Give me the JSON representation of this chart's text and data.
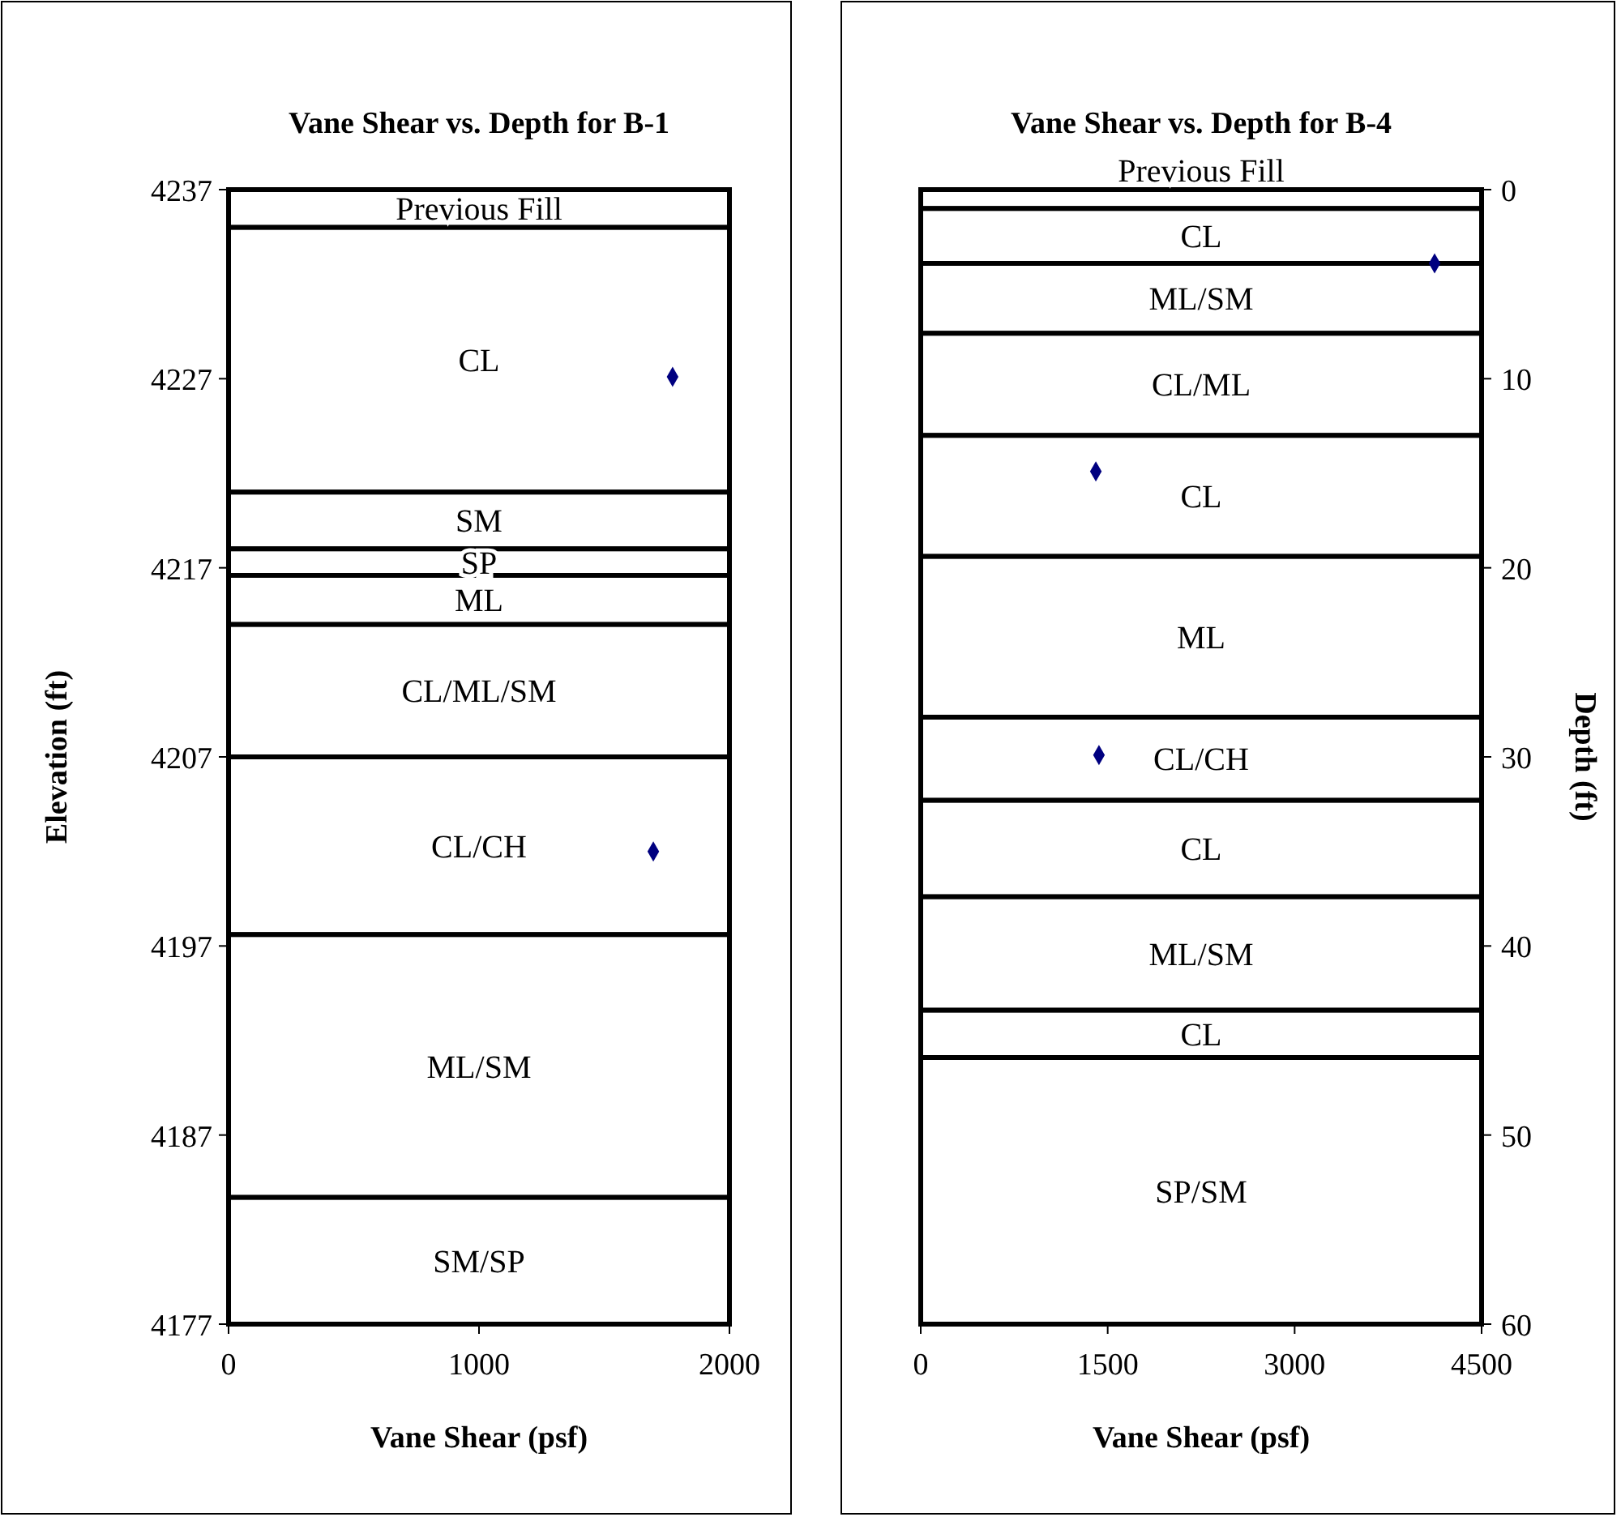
{
  "chart_data": [
    {
      "type": "scatter",
      "title": "Vane Shear vs. Depth for B-1",
      "xlabel": "Vane Shear (psf)",
      "ylabel": "Elevation (ft)",
      "xlim": [
        0,
        2000
      ],
      "xticks": [
        0,
        1000,
        2000
      ],
      "ylim": [
        4177,
        4237
      ],
      "yticks": [
        4177,
        4187,
        4197,
        4207,
        4217,
        4227,
        4237
      ],
      "marker": "diamond",
      "grid": false,
      "series": [
        {
          "color": "#000080",
          "x": [
            1773,
            1696
          ],
          "values": [
            4227.1,
            4202
          ]
        }
      ],
      "bands": [
        {
          "axis": "y",
          "from": 4235,
          "to": 4237,
          "label": "Previous Fill",
          "color": "#ffffff"
        },
        {
          "axis": "y",
          "from": 4221,
          "to": 4235,
          "label": "CL",
          "color": "#ffffff"
        },
        {
          "axis": "y",
          "from": 4218,
          "to": 4221,
          "label": "SM",
          "color": "#ffffff"
        },
        {
          "axis": "y",
          "from": 4216.6,
          "to": 4218,
          "label": "SP",
          "color": "#ffffff"
        },
        {
          "axis": "y",
          "from": 4214,
          "to": 4216.6,
          "label": "ML",
          "color": "#ffffff"
        },
        {
          "axis": "y",
          "from": 4207,
          "to": 4214,
          "label": "CL/ML/SM",
          "color": "#ffffff"
        },
        {
          "axis": "y",
          "from": 4197.6,
          "to": 4207,
          "label": "CL/CH",
          "color": "#ffffff"
        },
        {
          "axis": "y",
          "from": 4183.7,
          "to": 4197.6,
          "label": "ML/SM",
          "color": "#ffffff"
        },
        {
          "axis": "y",
          "from": 4177,
          "to": 4183.7,
          "label": "SM/SP",
          "color": "#ffffff"
        }
      ]
    },
    {
      "type": "scatter",
      "title": "Vane Shear vs. Depth for B-4",
      "xlabel": "Vane Shear (psf)",
      "y2label": "Depth (ft)",
      "xlim": [
        0,
        4500
      ],
      "xticks": [
        0,
        1500,
        3000,
        4500
      ],
      "y2lim": [
        60,
        0
      ],
      "y2ticks": [
        0,
        10,
        20,
        30,
        40,
        50,
        60
      ],
      "marker": "diamond",
      "grid": false,
      "series": [
        {
          "color": "#000080",
          "axis": "y2",
          "x": [
            4123,
            1405,
            1430
          ],
          "values": [
            3.9,
            14.9,
            29.9
          ]
        }
      ],
      "bands": [
        {
          "axis": "y2",
          "from": 0,
          "to": 1,
          "label": "Previous Fill",
          "color": "#ffffff"
        },
        {
          "axis": "y2",
          "from": 1,
          "to": 3.9,
          "label": "CL",
          "color": "#ffffff"
        },
        {
          "axis": "y2",
          "from": 3.9,
          "to": 7.6,
          "label": "ML/SM",
          "color": "#ffffff"
        },
        {
          "axis": "y2",
          "from": 7.6,
          "to": 13,
          "label": "CL/ML",
          "color": "#ffffff"
        },
        {
          "axis": "y2",
          "from": 13,
          "to": 19.4,
          "label": "CL",
          "color": "#ffffff"
        },
        {
          "axis": "y2",
          "from": 19.4,
          "to": 27.9,
          "label": "ML",
          "color": "#ffffff"
        },
        {
          "axis": "y2",
          "from": 27.9,
          "to": 32.3,
          "label": "CL/CH",
          "color": "#ffffff"
        },
        {
          "axis": "y2",
          "from": 32.3,
          "to": 37.4,
          "label": "CL",
          "color": "#ffffff"
        },
        {
          "axis": "y2",
          "from": 37.4,
          "to": 43.4,
          "label": "ML/SM",
          "color": "#ffffff"
        },
        {
          "axis": "y2",
          "from": 43.4,
          "to": 45.9,
          "label": "CL",
          "color": "#ffffff"
        },
        {
          "axis": "y2",
          "from": 45.9,
          "to": 60,
          "label": "SP/SM",
          "color": "#ffffff"
        }
      ]
    }
  ]
}
